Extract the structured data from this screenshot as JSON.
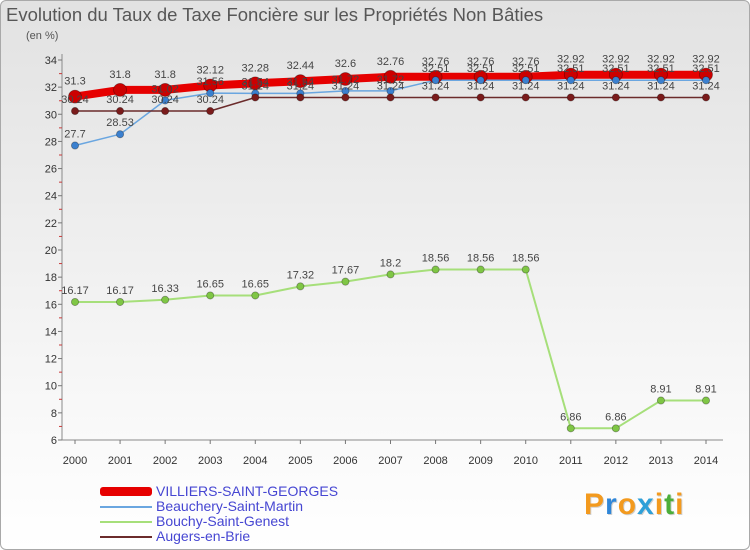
{
  "chart_data": {
    "type": "line",
    "title": "Evolution du Taux de Taxe Foncière sur les Propriétés Non Bâties",
    "subtitle": "(en %)",
    "x": [
      "2000",
      "2001",
      "2002",
      "2003",
      "2004",
      "2005",
      "2006",
      "2007",
      "2008",
      "2009",
      "2010",
      "2011",
      "2012",
      "2013",
      "2014"
    ],
    "ylim": [
      6,
      34
    ],
    "yticks": [
      6,
      8,
      10,
      12,
      14,
      16,
      18,
      20,
      22,
      24,
      26,
      28,
      30,
      32,
      34
    ],
    "grid": false,
    "legend_position": "bottom-left",
    "series": [
      {
        "name": "VILLIERS-SAINT-GEORGES",
        "color": "#e60000",
        "marker_color": "#cc0000",
        "values": [
          31.3,
          31.8,
          31.8,
          32.12,
          32.28,
          32.44,
          32.6,
          32.76,
          32.76,
          32.76,
          32.76,
          32.92,
          32.92,
          32.92,
          32.92
        ]
      },
      {
        "name": "Beauchery-Saint-Martin",
        "color": "#6aa6e0",
        "marker_color": "#3b80cf",
        "values": [
          27.7,
          28.53,
          31.02,
          31.56,
          31.54,
          31.54,
          31.72,
          31.72,
          32.51,
          32.51,
          32.51,
          32.51,
          32.51,
          32.51,
          32.51
        ]
      },
      {
        "name": "Bouchy-Saint-Genest",
        "color": "#a6df7a",
        "marker_color": "#7fc645",
        "values": [
          16.17,
          16.17,
          16.33,
          16.65,
          16.65,
          17.32,
          17.67,
          18.2,
          18.56,
          18.56,
          18.56,
          6.86,
          6.86,
          8.91,
          8.91
        ]
      },
      {
        "name": "Augers-en-Brie",
        "color": "#6b2b2b",
        "marker_color": "#7a1b1b",
        "values": [
          30.24,
          30.24,
          30.24,
          30.24,
          31.24,
          31.24,
          31.24,
          31.24,
          31.24,
          31.24,
          31.24,
          31.24,
          31.24,
          31.24,
          31.24
        ]
      }
    ]
  },
  "branding": {
    "logo": "Proxiti",
    "logo_colors": [
      "#f39a1e",
      "#2f86d8",
      "#f39a1e",
      "#2fa0d8",
      "#f39a1e",
      "#4cae3a",
      "#f39a1e"
    ]
  }
}
